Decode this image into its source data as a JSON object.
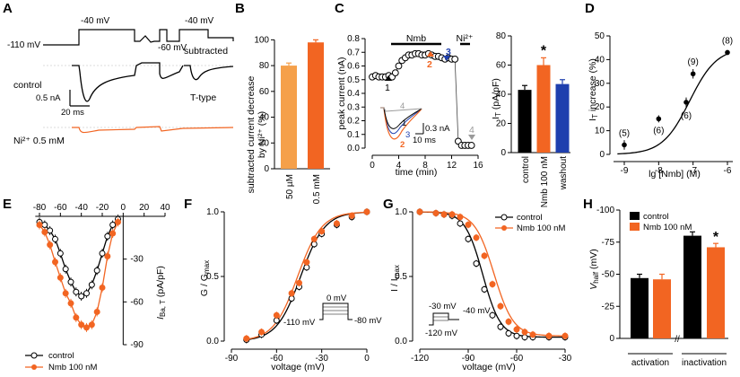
{
  "colors": {
    "control": "#000000",
    "nmb": "#f26522",
    "ni_low": "#f5a04a",
    "ni_high": "#f26522",
    "washout": "#1f3fae",
    "grey": "#9a9a9a",
    "black": "#000000"
  },
  "panels": {
    "A": {
      "label": "A",
      "v_hold": "-110 mV",
      "v_step1": "-40 mV",
      "v_step2": "-60 mV",
      "v_step3": "-40 mV",
      "subtracted": "subtracted",
      "control": "control",
      "ttype": "T-type",
      "scale_nA": "0.5 nA",
      "scale_ms": "20 ms",
      "ni": "Ni²⁺ 0.5 mM"
    },
    "B": {
      "label": "B",
      "ylabel1": "subtracted current decrease",
      "ylabel2": "by Ni²⁺ (%)",
      "yticks": [
        "0",
        "20",
        "40",
        "60",
        "80",
        "100"
      ]
    },
    "C": {
      "label": "C",
      "ylabel": "peak current (nA)",
      "xlabel": "time (min)",
      "nmb_bar": "Nmb",
      "ni_bar": "Ni²⁺",
      "xticks": [
        "0",
        "4",
        "8",
        "12",
        "16"
      ],
      "yticks": [
        "0.0",
        "0.1",
        "0.2",
        "0.3",
        "0.4",
        "0.5",
        "0.6",
        "0.7",
        "0.8"
      ],
      "arrow_labels": [
        "1",
        "2",
        "3",
        "4"
      ],
      "inset_labels": [
        "4",
        "1",
        "3",
        "2"
      ],
      "inset_nA": "0.3 nA",
      "inset_ms": "10 ms",
      "bar_ylabel": "I",
      "bar_ylabel_sub": "T",
      "bar_ylabel_unit": " (pA/pF)",
      "bar_yticks": [
        "0",
        "20",
        "40",
        "60",
        "80"
      ],
      "star": "*"
    },
    "D": {
      "label": "D",
      "xlabel": "lg [Nmb] (M)",
      "ylabel": "I",
      "ylabel_sub": "T",
      "ylabel_rest": " increase (%)",
      "xticks": [
        "-9",
        "-8",
        "-7",
        "-6"
      ],
      "yticks": [
        "0",
        "10",
        "20",
        "30",
        "40",
        "50"
      ],
      "n_labels": [
        "(5)",
        "(6)",
        "(6)",
        "(9)",
        "(8)"
      ]
    },
    "E": {
      "label": "E",
      "xticks": [
        "-80",
        "-60",
        "-40",
        "-20",
        "0",
        "20",
        "40"
      ],
      "yticks": [
        "0",
        "-30",
        "-60",
        "-90"
      ],
      "ylabel": "I",
      "ylabel_sub": "Ba, T",
      "ylabel_unit": " (pA/pF)",
      "legend": [
        "control",
        "Nmb 100 nM"
      ]
    },
    "F": {
      "label": "F",
      "xlabel": "voltage (mV)",
      "ylabel": "G / G",
      "ylabel_sub": "max",
      "xticks": [
        "-90",
        "-60",
        "-30",
        "0"
      ],
      "yticks": [
        "0.0",
        "0.5",
        "1.0"
      ],
      "v1": "0 mV",
      "v2": "-110 mV",
      "v3": "-80 mV"
    },
    "G": {
      "label": "G",
      "xlabel": "voltage (mV)",
      "ylabel": "I / I",
      "ylabel_sub": "max",
      "xticks": [
        "-120",
        "-90",
        "-60",
        "-30"
      ],
      "yticks": [
        "0.0",
        "0.5",
        "1.0"
      ],
      "legend": [
        "control",
        "Nmb 100 nM"
      ],
      "v1": "-30 mV",
      "v2": "-40 mV",
      "v3": "-120 mV"
    },
    "H": {
      "label": "H",
      "ylabel": "V",
      "ylabel_sub": "half",
      "ylabel_unit": " (mV)",
      "yticks": [
        "0",
        "-25",
        "-50",
        "-75",
        "-100"
      ],
      "legend": [
        "control",
        "Nmb 100 nM"
      ],
      "groups": [
        "activation",
        "inactivation"
      ],
      "star": "*"
    }
  },
  "chart_data": [
    {
      "type": "bar",
      "title": "B",
      "categories": [
        "50 µM",
        "0.5 mM"
      ],
      "values": [
        80,
        98
      ],
      "errors": [
        2,
        2
      ],
      "ylabel": "subtracted current decrease by Ni²⁺ (%)",
      "ylim": [
        0,
        110
      ]
    },
    {
      "type": "scatter",
      "title": "C time course",
      "xlabel": "time (min)",
      "ylabel": "peak current (nA)",
      "xlim": [
        -1,
        17
      ],
      "ylim": [
        0,
        0.8
      ],
      "x": [
        0,
        0.5,
        1,
        1.5,
        2,
        2.5,
        3,
        3.5,
        4,
        4.5,
        5,
        5.5,
        6,
        6.5,
        7,
        7.5,
        8,
        8.5,
        9,
        9.5,
        10,
        10.5,
        11,
        11.5,
        12,
        12.5,
        13,
        13.5,
        14,
        14.5,
        15
      ],
      "y": [
        0.52,
        0.53,
        0.52,
        0.52,
        0.52,
        0.53,
        0.52,
        0.55,
        0.6,
        0.64,
        0.66,
        0.68,
        0.68,
        0.69,
        0.69,
        0.68,
        0.68,
        0.69,
        0.68,
        0.67,
        0.67,
        0.66,
        0.65,
        0.66,
        0.65,
        0.65,
        0.05,
        0.02,
        0.02,
        0.02,
        0.02
      ]
    },
    {
      "type": "bar",
      "title": "C summary",
      "categories": [
        "control",
        "Nmb 100 nM",
        "washout"
      ],
      "values": [
        43,
        60,
        47
      ],
      "errors": [
        3,
        5,
        3
      ],
      "ylabel": "I_T (pA/pF)",
      "ylim": [
        0,
        80
      ]
    },
    {
      "type": "scatter",
      "title": "D",
      "xlabel": "lg [Nmb] (M)",
      "ylabel": "I_T increase (%)",
      "x": [
        -9,
        -8,
        -7.2,
        -7,
        -6
      ],
      "y": [
        4,
        15,
        22,
        34,
        43
      ],
      "errors": [
        2,
        1.5,
        2,
        2,
        1
      ],
      "n": [
        "(5)",
        "(6)",
        "(6)",
        "(9)",
        "(8)"
      ],
      "xlim": [
        -9.3,
        -5.8
      ],
      "ylim": [
        0,
        50
      ]
    },
    {
      "type": "line",
      "title": "E",
      "x": [
        -80,
        -75,
        -70,
        -65,
        -60,
        -55,
        -50,
        -45,
        -40,
        -35,
        -30,
        -25,
        -20,
        -15,
        -10,
        -5
      ],
      "series": [
        {
          "name": "control",
          "values": [
            -4,
            -6,
            -10,
            -16,
            -26,
            -37,
            -46,
            -53,
            -56,
            -54,
            -48,
            -38,
            -26,
            -14,
            -6,
            -2
          ]
        },
        {
          "name": "Nmb 100 nM",
          "values": [
            -6,
            -11,
            -20,
            -32,
            -43,
            -54,
            -61,
            -71,
            -76,
            -78,
            -76,
            -67,
            -50,
            -28,
            -12,
            -4
          ]
        }
      ],
      "xlim": [
        -85,
        40
      ],
      "ylim": [
        -90,
        0
      ]
    },
    {
      "type": "line",
      "title": "F",
      "x": [
        -80,
        -70,
        -60,
        -50,
        -45,
        -40,
        -35,
        -30,
        -20,
        -10,
        0
      ],
      "series": [
        {
          "name": "control",
          "values": [
            0.01,
            0.05,
            0.16,
            0.33,
            0.42,
            0.57,
            0.75,
            0.83,
            0.9,
            0.96,
            1.0
          ]
        },
        {
          "name": "Nmb 100 nM",
          "values": [
            0.02,
            0.07,
            0.2,
            0.37,
            0.45,
            0.61,
            0.79,
            0.85,
            0.91,
            0.97,
            1.0
          ]
        }
      ],
      "xlim": [
        -95,
        5
      ],
      "ylim": [
        0,
        1.05
      ]
    },
    {
      "type": "line",
      "title": "G",
      "x": [
        -120,
        -110,
        -105,
        -100,
        -95,
        -90,
        -85,
        -80,
        -75,
        -70,
        -65,
        -60,
        -55,
        -50,
        -40,
        -30
      ],
      "series": [
        {
          "name": "control",
          "values": [
            1.0,
            0.99,
            0.98,
            0.97,
            0.91,
            0.79,
            0.6,
            0.4,
            0.2,
            0.11,
            0.06,
            0.04,
            0.03,
            0.03,
            0.03,
            0.03
          ]
        },
        {
          "name": "Nmb 100 nM",
          "values": [
            1.0,
            0.99,
            0.98,
            0.98,
            0.96,
            0.9,
            0.8,
            0.66,
            0.44,
            0.27,
            0.15,
            0.09,
            0.07,
            0.05,
            0.04,
            0.04
          ]
        }
      ],
      "xlim": [
        -125,
        -25
      ],
      "ylim": [
        0,
        1.05
      ]
    },
    {
      "type": "bar",
      "title": "H",
      "categories": [
        "activation",
        "inactivation"
      ],
      "series": [
        {
          "name": "control",
          "values": [
            -47,
            -80
          ],
          "errors": [
            3,
            3
          ]
        },
        {
          "name": "Nmb 100 nM",
          "values": [
            -46,
            -71
          ],
          "errors": [
            4,
            3
          ]
        }
      ],
      "ylabel": "V_half (mV)",
      "ylim": [
        0,
        -100
      ]
    }
  ]
}
